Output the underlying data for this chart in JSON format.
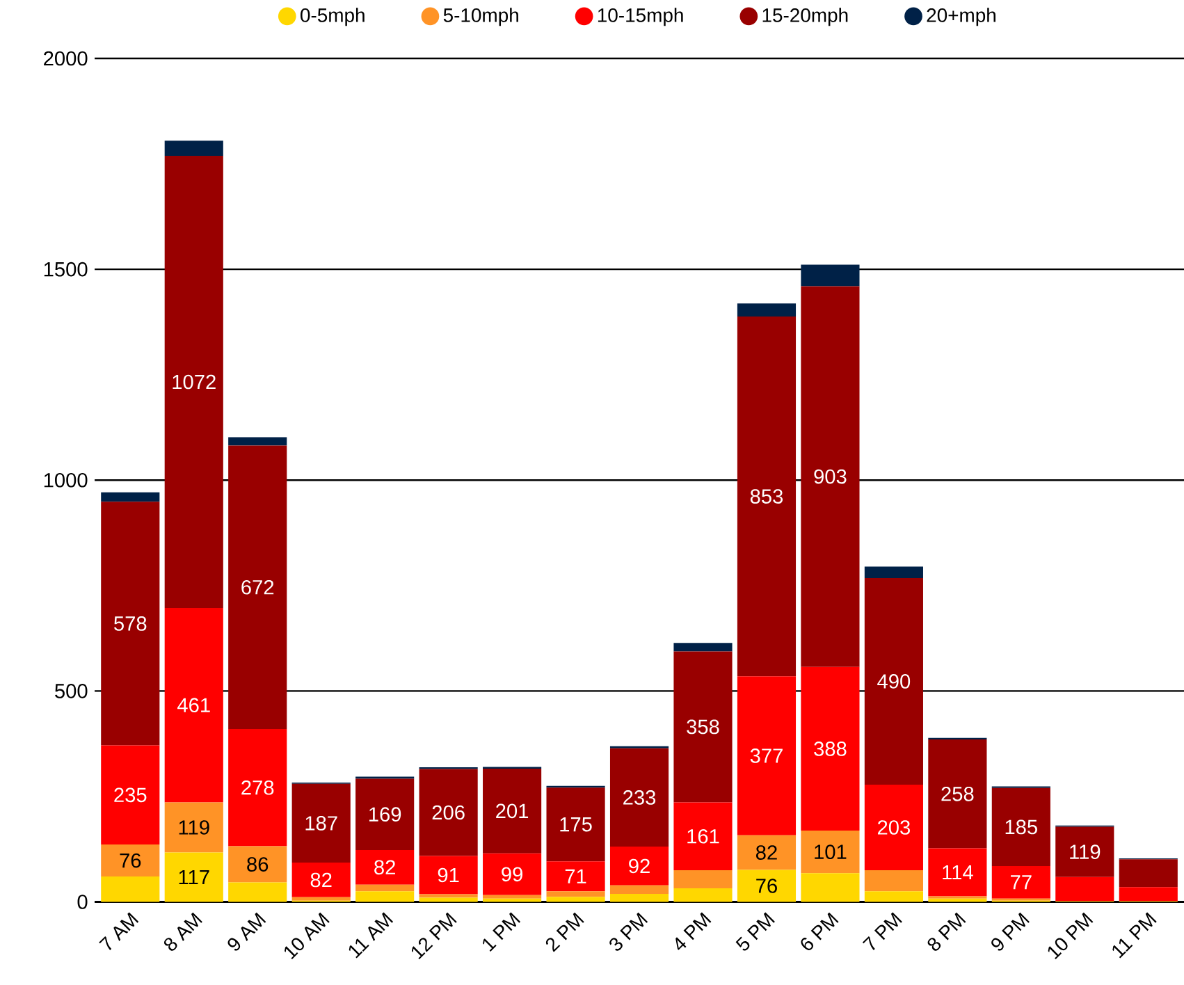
{
  "chart_data": {
    "type": "bar",
    "stacked": true,
    "legend": "top",
    "grid": "y",
    "categories": [
      "7 AM",
      "8 AM",
      "9 AM",
      "10 AM",
      "11 AM",
      "12 PM",
      "1 PM",
      "2 PM",
      "3 PM",
      "4 PM",
      "5 PM",
      "6 PM",
      "7 PM",
      "8 PM",
      "9 PM",
      "10 PM",
      "11 PM"
    ],
    "ylim": [
      0,
      2000
    ],
    "yticks": [
      0,
      500,
      1000,
      1500,
      2000
    ],
    "series": [
      {
        "name": "0-5mph",
        "color": "#ffd700",
        "values": [
          60,
          117,
          46,
          3,
          25,
          10,
          8,
          12,
          19,
          32,
          76,
          68,
          25,
          8,
          3,
          1,
          1
        ],
        "value_labels": [
          null,
          "117",
          null,
          null,
          null,
          null,
          null,
          null,
          null,
          null,
          "76",
          null,
          null,
          null,
          null,
          null,
          null
        ]
      },
      {
        "name": "5-10mph",
        "color": "#ff9326",
        "values": [
          76,
          119,
          86,
          8,
          16,
          8,
          8,
          13,
          20,
          43,
          82,
          101,
          50,
          5,
          5,
          1,
          1
        ],
        "value_labels": [
          "76",
          "119",
          "86",
          null,
          null,
          null,
          null,
          null,
          null,
          null,
          "82",
          "101",
          null,
          null,
          null,
          null,
          null
        ]
      },
      {
        "name": "10-15mph",
        "color": "#ff0000",
        "values": [
          235,
          461,
          278,
          82,
          82,
          91,
          99,
          71,
          92,
          161,
          377,
          388,
          203,
          114,
          77,
          57,
          33
        ],
        "value_labels": [
          "235",
          "461",
          "278",
          "82",
          "82",
          "91",
          "99",
          "71",
          "92",
          "161",
          "377",
          "388",
          "203",
          "114",
          "77",
          null,
          null
        ]
      },
      {
        "name": "15-20mph",
        "color": "#990000",
        "values": [
          578,
          1072,
          672,
          187,
          169,
          206,
          201,
          175,
          233,
          358,
          853,
          903,
          490,
          258,
          185,
          119,
          66
        ],
        "value_labels": [
          "578",
          "1072",
          "672",
          "187",
          "169",
          "206",
          "201",
          "175",
          "233",
          "358",
          "853",
          "903",
          "490",
          "258",
          "185",
          "119",
          null
        ]
      },
      {
        "name": "20+mph",
        "color": "#002147",
        "values": [
          22,
          36,
          20,
          3,
          5,
          4,
          4,
          4,
          5,
          20,
          31,
          51,
          27,
          4,
          4,
          3,
          2
        ]
      }
    ]
  }
}
